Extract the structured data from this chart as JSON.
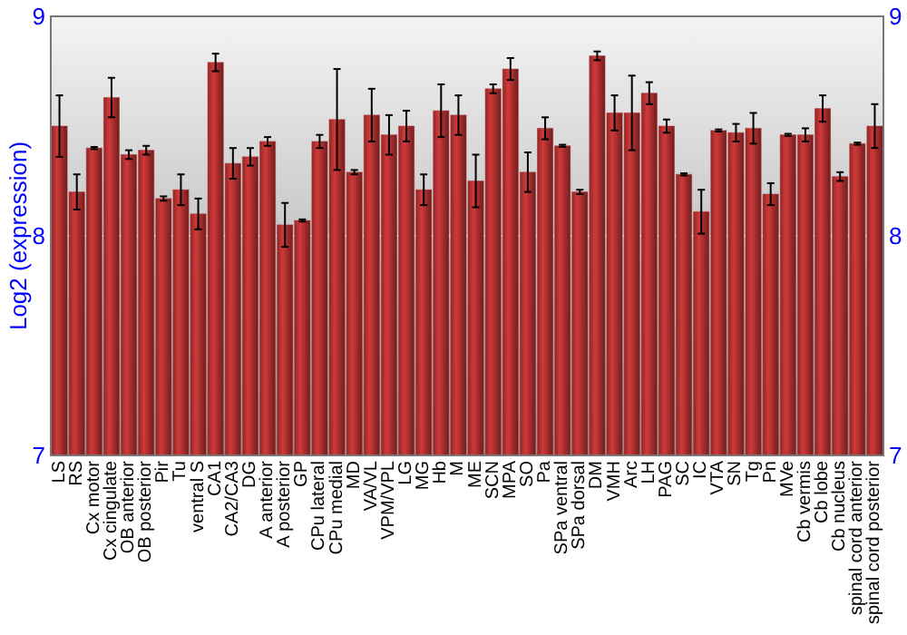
{
  "chart_data": {
    "type": "bar",
    "ylabel": "Log2 (expression)",
    "categories": [
      "LS",
      "RS",
      "Cx motor",
      "Cx cingulate",
      "OB anterior",
      "OB posterior",
      "Pir",
      "Tu",
      "ventral S",
      "CA1",
      "CA2/CA3",
      "DG",
      "A anterior",
      "A posterior",
      "GP",
      "CPu lateral",
      "CPu medial",
      "MD",
      "VA/VL",
      "VPM/VPL",
      "LG",
      "MG",
      "Hb",
      "M",
      "ME",
      "SCN",
      "MPA",
      "SO",
      "Pa",
      "SPa ventral",
      "SPa dorsal",
      "DM",
      "VMH",
      "Arc",
      "LH",
      "PAG",
      "SC",
      "IC",
      "VTA",
      "SN",
      "Tg",
      "Pn",
      "MVe",
      "Cb vermis",
      "Cb lobe",
      "Cb nucleus",
      "spinal cord anterior",
      "spinal cord posterior"
    ],
    "values": [
      8.5,
      8.2,
      8.4,
      8.63,
      8.37,
      8.39,
      8.17,
      8.21,
      8.1,
      8.79,
      8.33,
      8.36,
      8.43,
      8.05,
      8.07,
      8.43,
      8.53,
      8.29,
      8.55,
      8.46,
      8.5,
      8.21,
      8.57,
      8.55,
      8.25,
      8.67,
      8.76,
      8.29,
      8.49,
      8.41,
      8.2,
      8.82,
      8.56,
      8.56,
      8.65,
      8.5,
      8.28,
      8.11,
      8.48,
      8.47,
      8.49,
      8.19,
      8.46,
      8.46,
      8.58,
      8.27,
      8.42,
      8.5
    ],
    "errors": [
      0.14,
      0.08,
      0.005,
      0.09,
      0.02,
      0.02,
      0.01,
      0.07,
      0.07,
      0.04,
      0.07,
      0.04,
      0.02,
      0.1,
      0.005,
      0.03,
      0.23,
      0.01,
      0.12,
      0.09,
      0.07,
      0.07,
      0.12,
      0.09,
      0.12,
      0.02,
      0.05,
      0.09,
      0.05,
      0.005,
      0.01,
      0.02,
      0.08,
      0.17,
      0.05,
      0.03,
      0.005,
      0.1,
      0.005,
      0.04,
      0.07,
      0.05,
      0.005,
      0.03,
      0.06,
      0.02,
      0.005,
      0.1
    ],
    "color": "#b03030",
    "ylim": [
      7,
      9
    ],
    "yticks": [
      7,
      8,
      9
    ],
    "y2lim": [
      7,
      9
    ],
    "y2ticks": [
      7,
      8,
      9
    ],
    "grid": "y"
  }
}
